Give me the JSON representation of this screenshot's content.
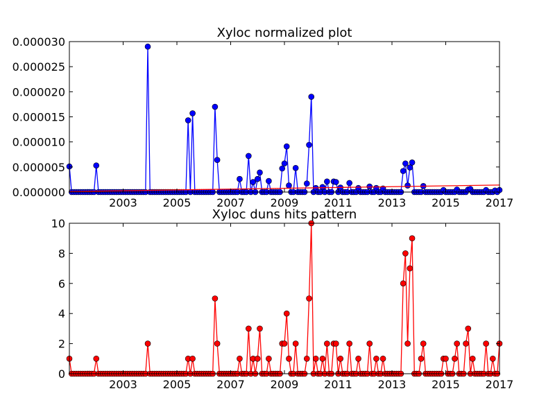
{
  "chart_data": [
    {
      "type": "line",
      "title": "Xyloc normalized plot",
      "xlabel": "",
      "ylabel": "",
      "xlim": [
        2001.0,
        2017.0
      ],
      "ylim": [
        0,
        3e-05
      ],
      "x_tick_labels": [
        "2003",
        "2005",
        "2007",
        "2009",
        "2011",
        "2013",
        "2015",
        "2017"
      ],
      "y_tick_labels": [
        "0.000000",
        "0.000005",
        "0.000010",
        "0.000015",
        "0.000020",
        "0.000025",
        "0.000030"
      ],
      "series": [
        {
          "color": "#0000ff",
          "marker": "circle",
          "points": [
            [
              2001.0,
              5.1e-06
            ],
            [
              2002.0,
              5.3e-06
            ],
            [
              2003.92,
              2.9e-05
            ],
            [
              2005.42,
              1.43e-05
            ],
            [
              2005.58,
              1.57e-05
            ],
            [
              2006.42,
              1.7e-05
            ],
            [
              2006.5,
              6.4e-06
            ],
            [
              2007.33,
              2.6e-06
            ],
            [
              2007.67,
              7.2e-06
            ],
            [
              2007.83,
              2e-06
            ],
            [
              2008.0,
              2.6e-06
            ],
            [
              2008.08,
              3.9e-06
            ],
            [
              2008.42,
              2.2e-06
            ],
            [
              2008.92,
              4.7e-06
            ],
            [
              2009.0,
              5.7e-06
            ],
            [
              2009.08,
              9.1e-06
            ],
            [
              2009.17,
              1.3e-06
            ],
            [
              2009.42,
              4.8e-06
            ],
            [
              2009.83,
              1.7e-06
            ],
            [
              2009.92,
              9.4e-06
            ],
            [
              2010.0,
              1.9e-05
            ],
            [
              2010.17,
              8e-07
            ],
            [
              2010.42,
              1e-06
            ],
            [
              2010.58,
              2.1e-06
            ],
            [
              2010.83,
              2.1e-06
            ],
            [
              2010.92,
              2e-06
            ],
            [
              2011.08,
              9e-07
            ],
            [
              2011.42,
              1.8e-06
            ],
            [
              2011.75,
              8e-07
            ],
            [
              2012.17,
              1.1e-06
            ],
            [
              2012.42,
              8e-07
            ],
            [
              2012.67,
              7e-07
            ],
            [
              2013.42,
              4.2e-06
            ],
            [
              2013.5,
              5.7e-06
            ],
            [
              2013.58,
              1.3e-06
            ],
            [
              2013.67,
              4.9e-06
            ],
            [
              2013.75,
              5.9e-06
            ],
            [
              2014.17,
              1.2e-06
            ],
            [
              2014.92,
              4e-07
            ],
            [
              2015.42,
              5e-07
            ],
            [
              2015.83,
              5e-07
            ],
            [
              2015.92,
              6e-07
            ],
            [
              2016.5,
              4e-07
            ],
            [
              2016.83,
              3e-07
            ],
            [
              2017.0,
              4e-07
            ]
          ]
        },
        {
          "color": "#ff0000",
          "marker": "none",
          "points": [
            [
              2001.0,
              1e-07
            ],
            [
              2017.0,
              1.4e-06
            ]
          ]
        }
      ]
    },
    {
      "type": "line",
      "title": "Xyloc duns hits pattern",
      "xlabel": "",
      "ylabel": "",
      "xlim": [
        2001.0,
        2017.0
      ],
      "ylim": [
        0,
        10
      ],
      "x_tick_labels": [
        "2003",
        "2005",
        "2007",
        "2009",
        "2011",
        "2013",
        "2015",
        "2017"
      ],
      "y_tick_labels": [
        "0",
        "2",
        "4",
        "6",
        "8",
        "10"
      ],
      "series": [
        {
          "color": "#ff0000",
          "marker": "circle",
          "points": [
            [
              2001.0,
              1
            ],
            [
              2002.0,
              1
            ],
            [
              2003.92,
              2
            ],
            [
              2005.42,
              1
            ],
            [
              2005.58,
              1
            ],
            [
              2006.42,
              5
            ],
            [
              2006.5,
              2
            ],
            [
              2007.33,
              1
            ],
            [
              2007.67,
              3
            ],
            [
              2007.83,
              1
            ],
            [
              2008.0,
              1
            ],
            [
              2008.08,
              3
            ],
            [
              2008.42,
              1
            ],
            [
              2008.92,
              2
            ],
            [
              2009.0,
              2
            ],
            [
              2009.08,
              4
            ],
            [
              2009.17,
              1
            ],
            [
              2009.42,
              2
            ],
            [
              2009.83,
              1
            ],
            [
              2009.92,
              5
            ],
            [
              2010.0,
              10
            ],
            [
              2010.17,
              1
            ],
            [
              2010.42,
              1
            ],
            [
              2010.58,
              2
            ],
            [
              2010.83,
              2
            ],
            [
              2010.92,
              2
            ],
            [
              2011.08,
              1
            ],
            [
              2011.42,
              2
            ],
            [
              2011.75,
              1
            ],
            [
              2012.17,
              2
            ],
            [
              2012.42,
              1
            ],
            [
              2012.67,
              1
            ],
            [
              2013.42,
              6
            ],
            [
              2013.5,
              8
            ],
            [
              2013.58,
              2
            ],
            [
              2013.67,
              7
            ],
            [
              2013.75,
              9
            ],
            [
              2014.08,
              1
            ],
            [
              2014.17,
              2
            ],
            [
              2014.92,
              1
            ],
            [
              2015.0,
              1
            ],
            [
              2015.33,
              1
            ],
            [
              2015.42,
              2
            ],
            [
              2015.75,
              2
            ],
            [
              2015.83,
              3
            ],
            [
              2016.0,
              1
            ],
            [
              2016.5,
              2
            ],
            [
              2016.75,
              1
            ],
            [
              2017.0,
              2
            ]
          ]
        }
      ]
    }
  ]
}
